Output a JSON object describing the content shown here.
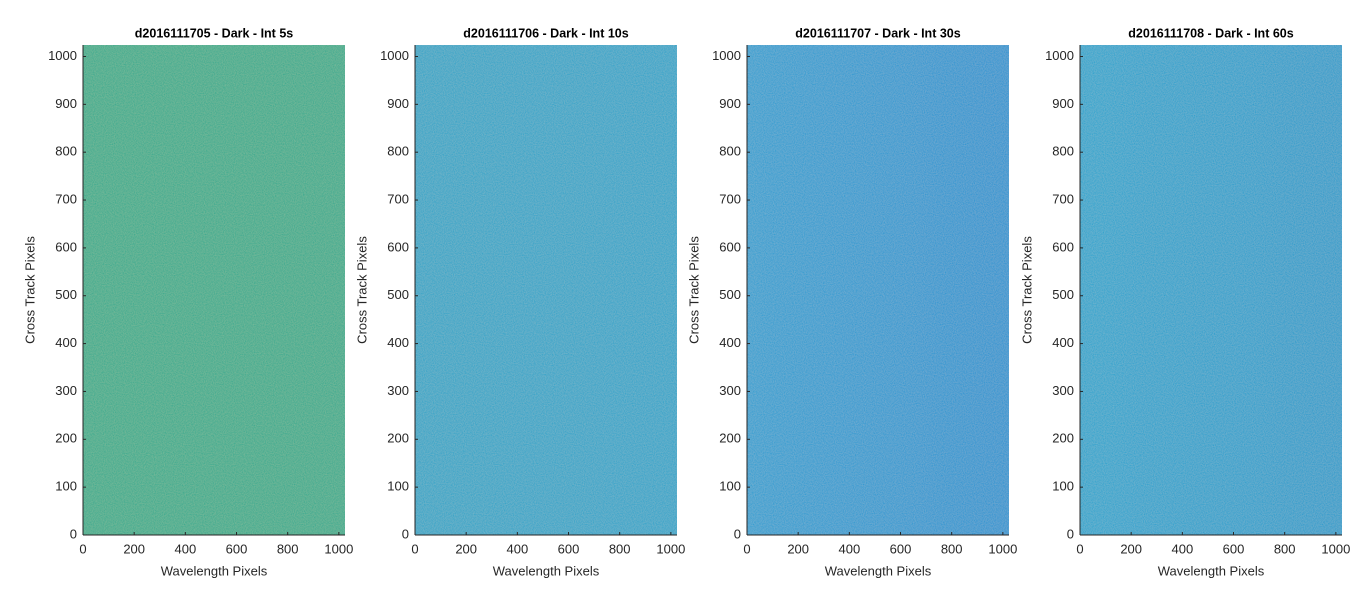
{
  "chart_data": [
    {
      "type": "heatmap",
      "title": "d2016111705 - Dark - Int 5s",
      "xlabel": "Wavelength Pixels",
      "ylabel": "Cross Track Pixels",
      "xlim": [
        0,
        1024
      ],
      "ylim": [
        0,
        1024
      ],
      "xticks": [
        0,
        200,
        400,
        600,
        800,
        1000
      ],
      "yticks": [
        0,
        100,
        200,
        300,
        400,
        500,
        600,
        700,
        800,
        900,
        1000
      ],
      "colors": [
        "#2ba88d",
        "#2aa78e"
      ]
    },
    {
      "type": "heatmap",
      "title": "d2016111706 - Dark - Int 10s",
      "xlabel": "Wavelength Pixels",
      "ylabel": "Cross Track Pixels",
      "xlim": [
        0,
        1024
      ],
      "ylim": [
        0,
        1024
      ],
      "xticks": [
        0,
        200,
        400,
        600,
        800,
        1000
      ],
      "yticks": [
        0,
        100,
        200,
        300,
        400,
        500,
        600,
        700,
        800,
        900,
        1000
      ],
      "colors": [
        "#1ca1c8",
        "#19a0ca"
      ]
    },
    {
      "type": "heatmap",
      "title": "d2016111707 - Dark - Int 30s",
      "xlabel": "Wavelength Pixels",
      "ylabel": "Cross Track Pixels",
      "xlim": [
        0,
        1024
      ],
      "ylim": [
        0,
        1024
      ],
      "xticks": [
        0,
        200,
        400,
        600,
        800,
        1000
      ],
      "yticks": [
        0,
        100,
        200,
        300,
        400,
        500,
        600,
        700,
        800,
        900,
        1000
      ],
      "colors": [
        "#1a9bd2",
        "#0e90d1"
      ]
    },
    {
      "type": "heatmap",
      "title": "d2016111708 - Dark - Int 60s",
      "xlabel": "Wavelength Pixels",
      "ylabel": "Cross Track Pixels",
      "xlim": [
        0,
        1024
      ],
      "ylim": [
        0,
        1024
      ],
      "xticks": [
        0,
        200,
        400,
        600,
        800,
        1000
      ],
      "yticks": [
        0,
        100,
        200,
        300,
        400,
        500,
        600,
        700,
        800,
        900,
        1000
      ],
      "colors": [
        "#0fa1cf",
        "#0b98cc"
      ]
    }
  ]
}
